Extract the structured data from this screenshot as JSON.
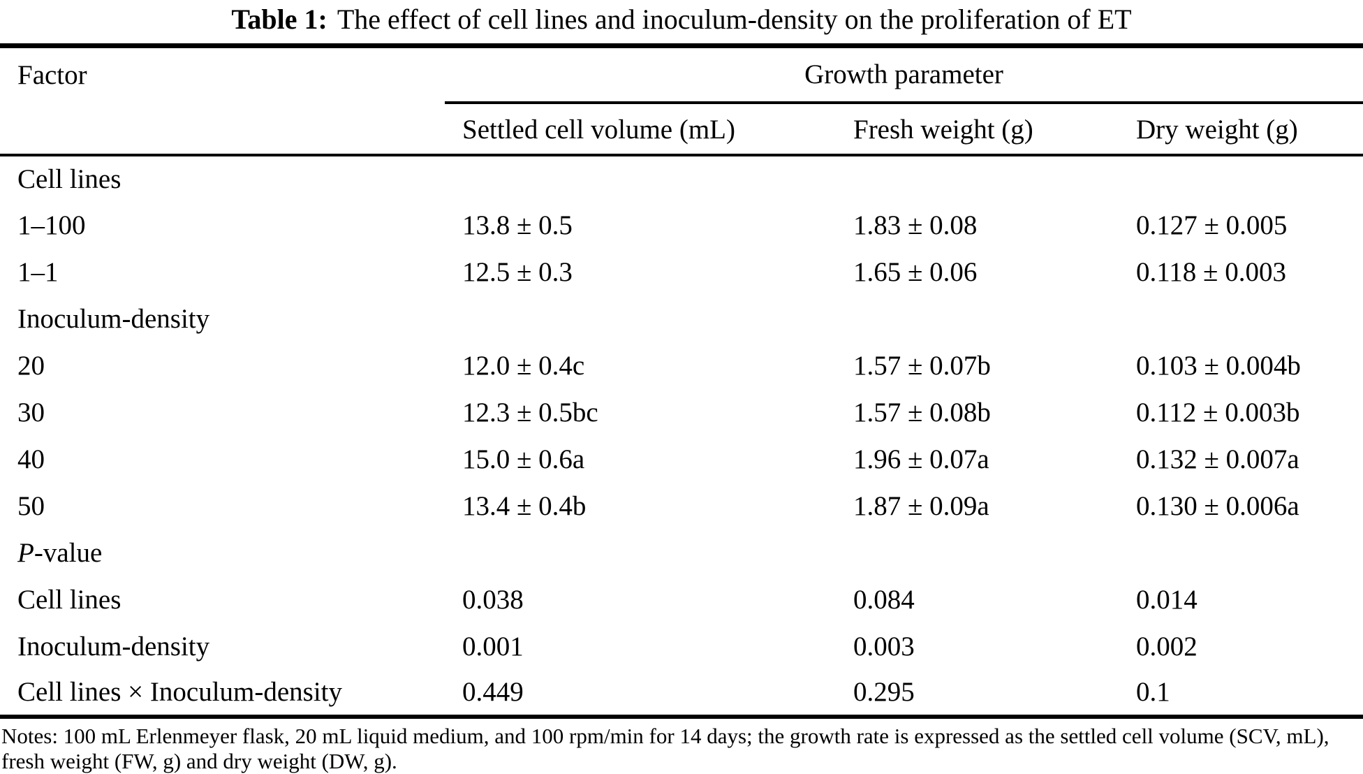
{
  "caption": {
    "label": "Table 1:",
    "text": "The effect of cell lines and inoculum-density on the proliferation of ET"
  },
  "table": {
    "factor_header": "Factor",
    "group_header": "Growth parameter",
    "columns": [
      "Settled cell volume (mL)",
      "Fresh weight (g)",
      "Dry weight (g)"
    ],
    "rows": [
      {
        "type": "section",
        "label": "Cell lines",
        "scv": "",
        "fw": "",
        "dw": ""
      },
      {
        "type": "data",
        "label": "1–100",
        "scv": "13.8 ± 0.5",
        "fw": "1.83 ± 0.08",
        "dw": "0.127 ± 0.005"
      },
      {
        "type": "data",
        "label": "1–1",
        "scv": "12.5 ± 0.3",
        "fw": "1.65 ± 0.06",
        "dw": "0.118 ± 0.003"
      },
      {
        "type": "section",
        "label": "Inoculum-density",
        "scv": "",
        "fw": "",
        "dw": ""
      },
      {
        "type": "data",
        "label": "20",
        "scv": "12.0 ± 0.4c",
        "fw": "1.57 ± 0.07b",
        "dw": "0.103 ± 0.004b"
      },
      {
        "type": "data",
        "label": "30",
        "scv": "12.3 ± 0.5bc",
        "fw": "1.57 ± 0.08b",
        "dw": "0.112 ± 0.003b"
      },
      {
        "type": "data",
        "label": "40",
        "scv": "15.0 ± 0.6a",
        "fw": "1.96 ± 0.07a",
        "dw": "0.132 ± 0.007a"
      },
      {
        "type": "data",
        "label": "50",
        "scv": "13.4 ± 0.4b",
        "fw": "1.87 ± 0.09a",
        "dw": "0.130 ± 0.006a"
      },
      {
        "type": "section",
        "label": "P-value",
        "scv": "",
        "fw": "",
        "dw": ""
      },
      {
        "type": "data",
        "label": "Cell lines",
        "scv": "0.038",
        "fw": "0.084",
        "dw": "0.014"
      },
      {
        "type": "data",
        "label": "Inoculum-density",
        "scv": "0.001",
        "fw": "0.003",
        "dw": "0.002"
      },
      {
        "type": "data",
        "label": "Cell lines × Inoculum-density",
        "scv": "0.449",
        "fw": "0.295",
        "dw": "0.1"
      }
    ]
  },
  "notes": "Notes: 100 mL Erlenmeyer flask, 20 mL liquid medium, and 100 rpm/min for 14 days; the growth rate is expressed as the settled cell volume (SCV, mL), fresh weight (FW, g) and dry weight (DW, g)."
}
